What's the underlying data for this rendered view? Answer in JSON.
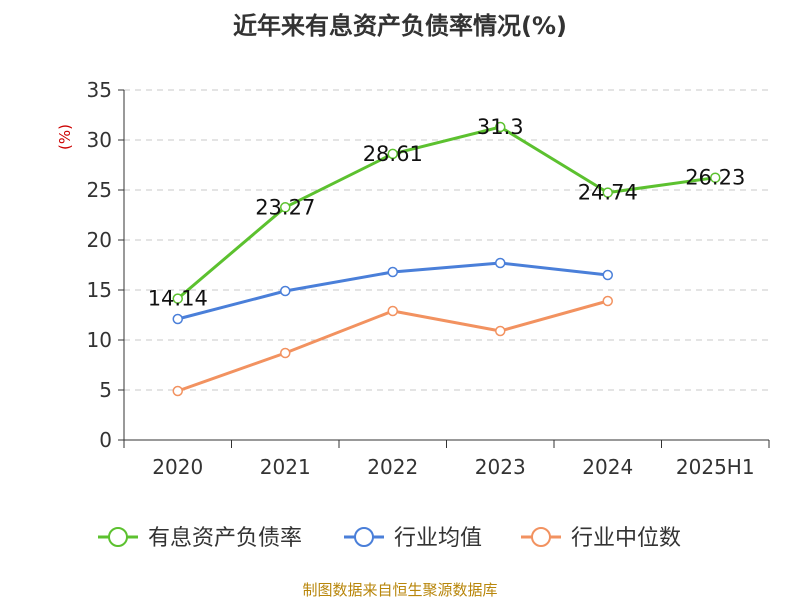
{
  "chart_data": {
    "type": "line",
    "title": "近年来有息资产负债率情况(%)",
    "ylabel": "(%)",
    "xlabel": "",
    "categories": [
      "2020",
      "2021",
      "2022",
      "2023",
      "2024",
      "2025H1"
    ],
    "ylim": [
      0,
      35
    ],
    "yticks": [
      0,
      5,
      10,
      15,
      20,
      25,
      30,
      35
    ],
    "grid": "horizontal-dashed",
    "legend_position": "bottom",
    "series": [
      {
        "name": "有息资产负债率",
        "color": "#5cc12f",
        "labels": true,
        "values": [
          14.14,
          23.27,
          28.61,
          31.3,
          24.74,
          26.23
        ]
      },
      {
        "name": "行业均值",
        "color": "#4a7fd9",
        "labels": false,
        "values": [
          12.1,
          14.9,
          16.8,
          17.7,
          16.5,
          null
        ]
      },
      {
        "name": "行业中位数",
        "color": "#f29260",
        "labels": false,
        "values": [
          4.9,
          8.7,
          12.9,
          10.9,
          13.9,
          null
        ]
      }
    ]
  },
  "source": "制图数据来自恒生聚源数据库"
}
